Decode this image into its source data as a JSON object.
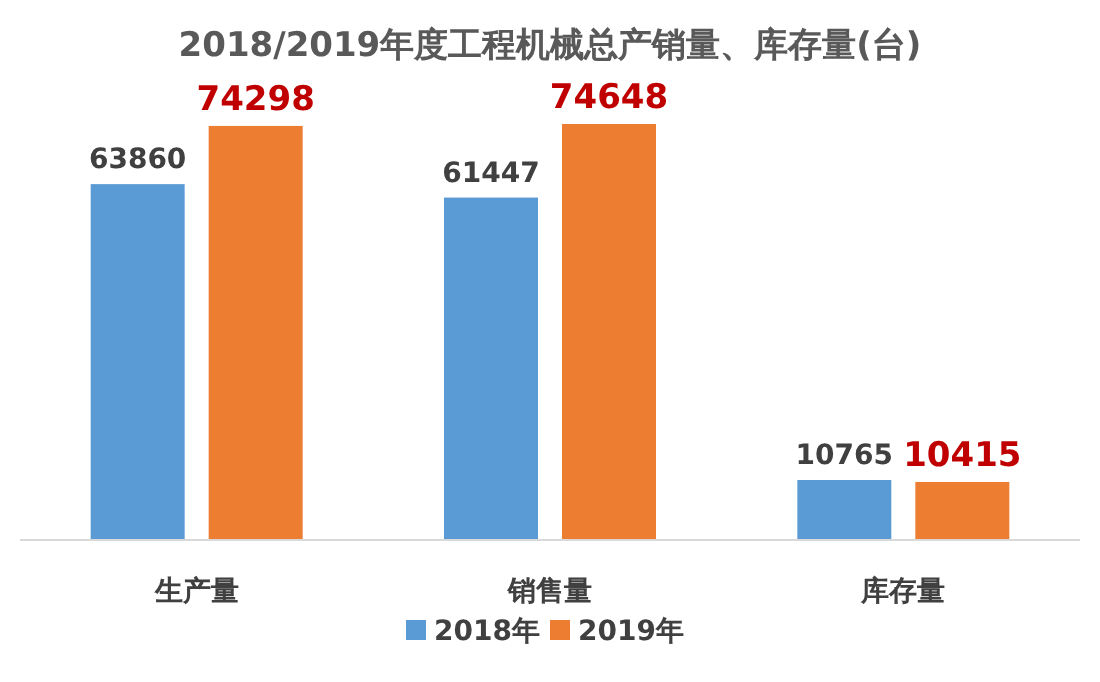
{
  "chart_data": {
    "type": "bar",
    "title": "2018/2019年度工程机械总产销量、库存量(台)",
    "categories": [
      "生产量",
      "销售量",
      "库存量"
    ],
    "series": [
      {
        "name": "2018年",
        "color": "#5b9bd5",
        "values": [
          63860,
          61447,
          10765
        ]
      },
      {
        "name": "2019年",
        "color": "#ed7d31",
        "values": [
          74298,
          74648,
          10415
        ]
      }
    ],
    "data_labels": true,
    "legend": "bottom"
  }
}
